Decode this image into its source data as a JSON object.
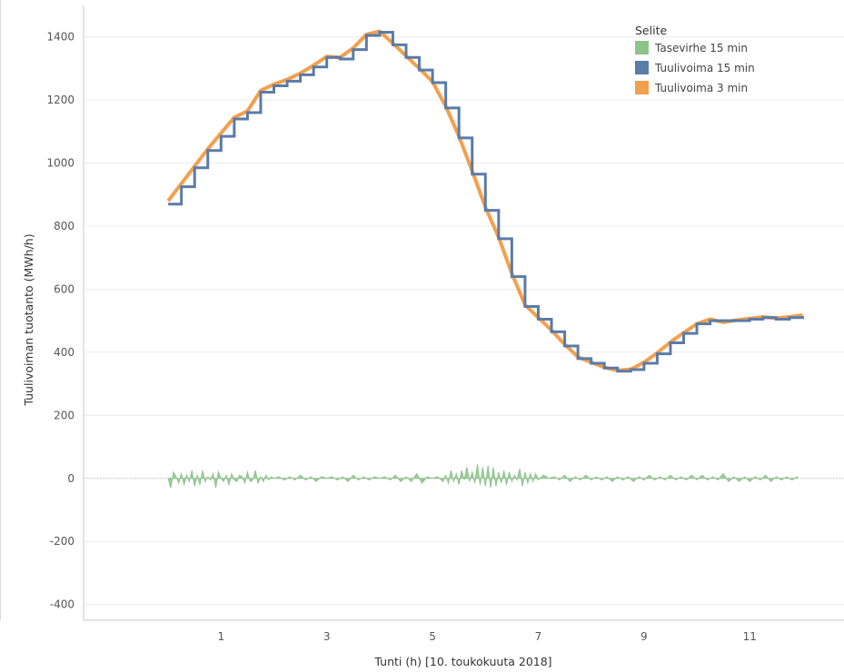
{
  "chart_data": {
    "type": "line",
    "xlabel": "Tunti (h) [10. toukokuuta 2018]",
    "ylabel": "Tuulivoiman tuotanto (MWh/h)",
    "xlim": [
      -1.6,
      12.8
    ],
    "ylim": [
      -450,
      1500
    ],
    "xticks": [
      1,
      3,
      5,
      7,
      9,
      11
    ],
    "yticks": [
      -400,
      -200,
      0,
      200,
      400,
      600,
      800,
      1000,
      1200,
      1400
    ],
    "grid": true,
    "legend_position": "top-right",
    "legend_title": "Selite",
    "colors": {
      "tasevirhe": "#8cc48a",
      "tuuli15": "#5b7ba8",
      "tuuli3": "#f2a04e"
    },
    "series": [
      {
        "name": "Tasevirhe 15 min",
        "kind": "area",
        "x": [
          0,
          0.05,
          0.1,
          0.15,
          0.2,
          0.25,
          0.3,
          0.35,
          0.4,
          0.45,
          0.5,
          0.55,
          0.6,
          0.65,
          0.7,
          0.75,
          0.8,
          0.85,
          0.9,
          0.95,
          1.0,
          1.05,
          1.1,
          1.15,
          1.2,
          1.25,
          1.3,
          1.35,
          1.4,
          1.45,
          1.5,
          1.55,
          1.6,
          1.65,
          1.7,
          1.75,
          1.8,
          1.85,
          1.9,
          1.95,
          2.0,
          2.1,
          2.2,
          2.3,
          2.4,
          2.5,
          2.6,
          2.7,
          2.8,
          2.9,
          3.0,
          3.1,
          3.2,
          3.3,
          3.4,
          3.5,
          3.6,
          3.7,
          3.8,
          3.9,
          4.0,
          4.1,
          4.2,
          4.3,
          4.4,
          4.5,
          4.6,
          4.7,
          4.8,
          4.9,
          5.0,
          5.1,
          5.2,
          5.25,
          5.3,
          5.35,
          5.4,
          5.45,
          5.5,
          5.55,
          5.6,
          5.65,
          5.7,
          5.75,
          5.8,
          5.85,
          5.9,
          5.95,
          6.0,
          6.05,
          6.1,
          6.15,
          6.2,
          6.25,
          6.3,
          6.35,
          6.4,
          6.45,
          6.5,
          6.55,
          6.6,
          6.65,
          6.7,
          6.75,
          6.8,
          6.85,
          6.9,
          6.95,
          7.0,
          7.1,
          7.2,
          7.3,
          7.4,
          7.5,
          7.6,
          7.7,
          7.8,
          7.9,
          8.0,
          8.1,
          8.2,
          8.3,
          8.4,
          8.5,
          8.6,
          8.7,
          8.8,
          8.9,
          9.0,
          9.1,
          9.2,
          9.3,
          9.4,
          9.5,
          9.6,
          9.7,
          9.8,
          9.9,
          10.0,
          10.1,
          10.2,
          10.3,
          10.4,
          10.5,
          10.6,
          10.7,
          10.8,
          10.9,
          11.0,
          11.1,
          11.2,
          11.3,
          11.4,
          11.5,
          11.6,
          11.7,
          11.8,
          11.9
        ],
        "values": [
          0,
          -30,
          20,
          5,
          -15,
          15,
          -20,
          10,
          -10,
          25,
          -25,
          10,
          -20,
          25,
          -10,
          5,
          -5,
          15,
          -30,
          20,
          0,
          -10,
          10,
          -20,
          15,
          -5,
          -10,
          10,
          5,
          -15,
          20,
          -10,
          -5,
          25,
          -15,
          5,
          -10,
          10,
          -5,
          5,
          0,
          5,
          -5,
          5,
          -5,
          10,
          -5,
          5,
          -10,
          5,
          0,
          5,
          -5,
          5,
          -10,
          10,
          -5,
          5,
          -5,
          5,
          0,
          5,
          -5,
          10,
          -10,
          5,
          -10,
          15,
          -15,
          5,
          0,
          5,
          -10,
          10,
          -15,
          25,
          -10,
          15,
          -20,
          25,
          -5,
          35,
          -10,
          20,
          -15,
          45,
          -20,
          35,
          -25,
          40,
          -30,
          35,
          -25,
          20,
          -15,
          25,
          -20,
          20,
          -10,
          10,
          -5,
          30,
          -25,
          20,
          -15,
          15,
          -10,
          15,
          -5,
          10,
          0,
          5,
          -5,
          10,
          -10,
          5,
          -5,
          10,
          -5,
          5,
          -5,
          5,
          -10,
          5,
          -5,
          5,
          -10,
          5,
          -5,
          10,
          -5,
          5,
          -5,
          10,
          -5,
          5,
          -5,
          10,
          -5,
          10,
          -5,
          5,
          -5,
          15,
          -10,
          5,
          -10,
          5,
          -10,
          5,
          -5,
          10,
          -10,
          5,
          -5,
          5,
          -5,
          5
        ]
      },
      {
        "name": "Tuulivoima 15 min",
        "kind": "step",
        "x": [
          0,
          0.25,
          0.5,
          0.75,
          1.0,
          1.25,
          1.5,
          1.75,
          2.0,
          2.25,
          2.5,
          2.75,
          3.0,
          3.25,
          3.5,
          3.75,
          4.0,
          4.25,
          4.5,
          4.75,
          5.0,
          5.25,
          5.5,
          5.75,
          6.0,
          6.25,
          6.5,
          6.75,
          7.0,
          7.25,
          7.5,
          7.75,
          8.0,
          8.25,
          8.5,
          8.75,
          9.0,
          9.25,
          9.5,
          9.75,
          10.0,
          10.25,
          10.5,
          10.75,
          11.0,
          11.25,
          11.5,
          11.75,
          12.0
        ],
        "values": [
          870,
          925,
          985,
          1040,
          1085,
          1140,
          1160,
          1225,
          1245,
          1260,
          1280,
          1305,
          1335,
          1330,
          1360,
          1405,
          1415,
          1375,
          1335,
          1295,
          1255,
          1175,
          1080,
          965,
          850,
          760,
          640,
          545,
          505,
          465,
          420,
          380,
          365,
          350,
          340,
          345,
          365,
          395,
          430,
          460,
          490,
          500,
          500,
          500,
          505,
          510,
          505,
          510,
          515
        ]
      },
      {
        "name": "Tuulivoima 3 min",
        "kind": "line",
        "x": [
          0,
          0.25,
          0.5,
          0.75,
          1.0,
          1.25,
          1.5,
          1.75,
          2.0,
          2.25,
          2.5,
          2.75,
          3.0,
          3.25,
          3.5,
          3.75,
          4.0,
          4.25,
          4.5,
          4.75,
          5.0,
          5.25,
          5.5,
          5.75,
          6.0,
          6.25,
          6.5,
          6.75,
          7.0,
          7.25,
          7.5,
          7.75,
          8.0,
          8.25,
          8.5,
          8.75,
          9.0,
          9.25,
          9.5,
          9.75,
          10.0,
          10.25,
          10.5,
          10.75,
          11.0,
          11.25,
          11.5,
          11.75,
          12.0
        ],
        "values": [
          880,
          935,
          990,
          1045,
          1095,
          1145,
          1165,
          1230,
          1250,
          1265,
          1285,
          1310,
          1338,
          1335,
          1365,
          1408,
          1418,
          1380,
          1340,
          1300,
          1258,
          1180,
          1085,
          975,
          860,
          765,
          650,
          550,
          510,
          470,
          425,
          385,
          368,
          352,
          342,
          346,
          368,
          398,
          432,
          462,
          490,
          505,
          495,
          502,
          507,
          512,
          508,
          512,
          518
        ]
      }
    ]
  }
}
